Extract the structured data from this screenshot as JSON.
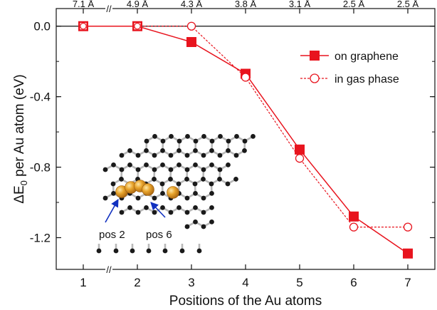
{
  "chart_data": {
    "type": "line",
    "xlabel": "Positions of the Au atoms",
    "ylabel_main": "ΔE",
    "ylabel_sub": "0",
    "ylabel_rest": " per Au atom (eV)",
    "xlim": [
      0.5,
      7.5
    ],
    "ylim": [
      -1.38,
      0.1
    ],
    "x_ticks": [
      1,
      2,
      3,
      4,
      5,
      6,
      7
    ],
    "x_tick_labels": [
      "1",
      "2",
      "3",
      "4",
      "5",
      "6",
      "7"
    ],
    "y_ticks": [
      0.0,
      -0.4,
      -0.8,
      -1.2
    ],
    "y_tick_labels": [
      "0.0",
      "-0.4",
      "-0.8",
      "-1.2"
    ],
    "top_axis_labels": [
      "7.1 Å",
      "4.9 Å",
      "4.3 Å",
      "3.8 Å",
      "3.1 Å",
      "2.5 Å",
      "2.5 Å"
    ],
    "axis_break": "//",
    "x": [
      1,
      2,
      3,
      4,
      5,
      6,
      7
    ],
    "series": [
      {
        "name": "on graphene",
        "values": [
          0.0,
          0.0,
          -0.09,
          -0.27,
          -0.7,
          -1.08,
          -1.29
        ],
        "color": "#e8141e",
        "style": "solid",
        "marker": "filled-square"
      },
      {
        "name": "in gas phase",
        "values": [
          0.0,
          0.0,
          0.0,
          -0.29,
          -0.75,
          -1.14,
          -1.14
        ],
        "color": "#e8141e",
        "style": "dashed",
        "marker": "open-circle"
      }
    ],
    "legend_position": "top-right",
    "reference_line": 0.0,
    "inset": {
      "description": "graphene lattice with gold atoms",
      "annotations": [
        "pos 2",
        "pos 6"
      ],
      "gold_color": "#e8a42c",
      "arrow_color": "#1030c0"
    }
  }
}
